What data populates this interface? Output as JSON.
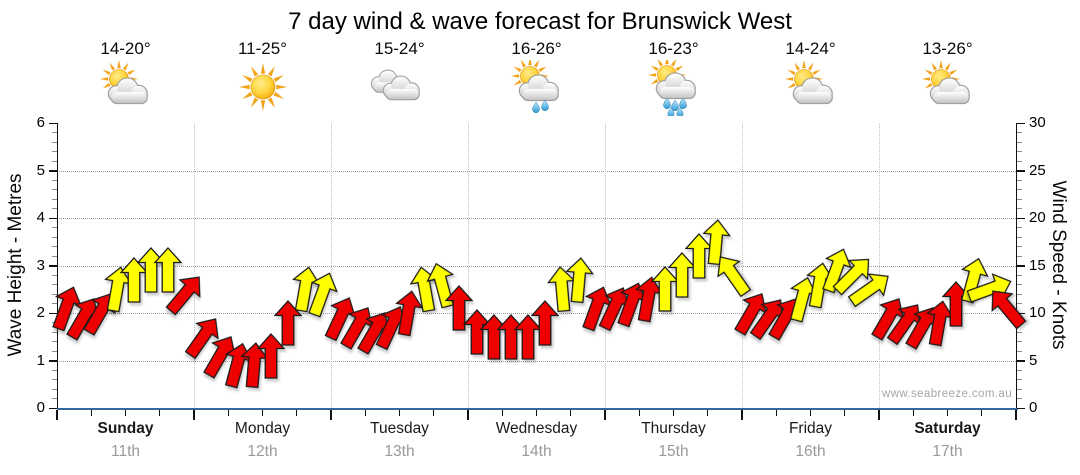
{
  "title": "7 day wind & wave forecast for Brunswick West",
  "watermark": "www.seabreeze.com.au",
  "axes": {
    "left": {
      "label": "Wave Height - Metres",
      "ticks": [
        0,
        1,
        2,
        3,
        4,
        5,
        6
      ],
      "range": [
        0,
        6
      ]
    },
    "right": {
      "label": "Wind Speed - Knots",
      "ticks": [
        0,
        5,
        10,
        15,
        20,
        25,
        30
      ],
      "range": [
        0,
        30
      ]
    }
  },
  "days": [
    {
      "name": "Sunday",
      "date": "11th",
      "temps": "14-20°",
      "icon": "sun-cloud",
      "weekend": true
    },
    {
      "name": "Monday",
      "date": "12th",
      "temps": "11-25°",
      "icon": "sun",
      "weekend": false
    },
    {
      "name": "Tuesday",
      "date": "13th",
      "temps": "15-24°",
      "icon": "clouds",
      "weekend": false
    },
    {
      "name": "Wednesday",
      "date": "14th",
      "temps": "16-26°",
      "icon": "sun-cloud-light-rain",
      "weekend": false
    },
    {
      "name": "Thursday",
      "date": "15th",
      "temps": "16-23°",
      "icon": "sun-cloud-rain",
      "weekend": false
    },
    {
      "name": "Friday",
      "date": "16th",
      "temps": "14-24°",
      "icon": "sun-cloud",
      "weekend": false
    },
    {
      "name": "Saturday",
      "date": "17th",
      "temps": "13-26°",
      "icon": "sun-cloud",
      "weekend": true
    }
  ],
  "colors": {
    "arrow_red": "#ee0000",
    "arrow_yellow": "#ffff00",
    "arrow_outline": "#1a1a1a",
    "axis_bottom_blue": "#34689a",
    "grid": "#9a9a9a",
    "date_text": "#999999",
    "watermark_text": "#a6a6a6"
  },
  "chart_data": {
    "type": "scatter",
    "title": "7 day wind & wave forecast for Brunswick West",
    "x": {
      "days": [
        "Sunday 11th",
        "Monday 12th",
        "Tuesday 13th",
        "Wednesday 14th",
        "Thursday 15th",
        "Friday 16th",
        "Saturday 17th"
      ],
      "points_per_day": 8
    },
    "y_left": {
      "label": "Wave Height - Metres",
      "range": [
        0,
        6
      ]
    },
    "y_right": {
      "label": "Wind Speed - Knots",
      "range": [
        0,
        30
      ]
    },
    "grid": true,
    "series_note": "wind arrows plotted on right axis (knots); color red/yellow; dir = rotation in degrees clockwise from straight up",
    "arrows": [
      {
        "knots": 10.5,
        "color": "red",
        "dir": 20
      },
      {
        "knots": 9.5,
        "color": "red",
        "dir": 30
      },
      {
        "knots": 10,
        "color": "red",
        "dir": 30
      },
      {
        "knots": 12.5,
        "color": "yellow",
        "dir": 10
      },
      {
        "knots": 13.5,
        "color": "yellow",
        "dir": 0
      },
      {
        "knots": 14.5,
        "color": "yellow",
        "dir": 0
      },
      {
        "knots": 14.5,
        "color": "yellow",
        "dir": 0
      },
      {
        "knots": 12,
        "color": "red",
        "dir": 40
      },
      {
        "knots": 7.5,
        "color": "red",
        "dir": 35
      },
      {
        "knots": 5.5,
        "color": "red",
        "dir": 30
      },
      {
        "knots": 4.5,
        "color": "red",
        "dir": 15
      },
      {
        "knots": 4.5,
        "color": "red",
        "dir": 5
      },
      {
        "knots": 5.5,
        "color": "red",
        "dir": 0
      },
      {
        "knots": 9,
        "color": "red",
        "dir": 0
      },
      {
        "knots": 12.5,
        "color": "yellow",
        "dir": 10
      },
      {
        "knots": 12,
        "color": "yellow",
        "dir": 20
      },
      {
        "knots": 9.5,
        "color": "red",
        "dir": 25
      },
      {
        "knots": 8.5,
        "color": "red",
        "dir": 30
      },
      {
        "knots": 8,
        "color": "red",
        "dir": 30
      },
      {
        "knots": 8.5,
        "color": "red",
        "dir": 25
      },
      {
        "knots": 10,
        "color": "red",
        "dir": 10
      },
      {
        "knots": 12.5,
        "color": "yellow",
        "dir": -10
      },
      {
        "knots": 13,
        "color": "yellow",
        "dir": -15
      },
      {
        "knots": 10.5,
        "color": "red",
        "dir": 0
      },
      {
        "knots": 8,
        "color": "red",
        "dir": 0
      },
      {
        "knots": 7.5,
        "color": "red",
        "dir": 0
      },
      {
        "knots": 7.5,
        "color": "red",
        "dir": 0
      },
      {
        "knots": 7.5,
        "color": "red",
        "dir": 0
      },
      {
        "knots": 9,
        "color": "red",
        "dir": 0
      },
      {
        "knots": 12.5,
        "color": "yellow",
        "dir": -5
      },
      {
        "knots": 13.5,
        "color": "yellow",
        "dir": 5
      },
      {
        "knots": 10.5,
        "color": "red",
        "dir": 20
      },
      {
        "knots": 10.5,
        "color": "red",
        "dir": 25
      },
      {
        "knots": 11,
        "color": "red",
        "dir": 20
      },
      {
        "knots": 11.5,
        "color": "red",
        "dir": 10
      },
      {
        "knots": 12.5,
        "color": "yellow",
        "dir": 0
      },
      {
        "knots": 14,
        "color": "yellow",
        "dir": 0
      },
      {
        "knots": 16,
        "color": "yellow",
        "dir": 0
      },
      {
        "knots": 17.5,
        "color": "yellow",
        "dir": 5
      },
      {
        "knots": 14,
        "color": "yellow",
        "dir": -35
      },
      {
        "knots": 10,
        "color": "red",
        "dir": 30
      },
      {
        "knots": 9.5,
        "color": "red",
        "dir": 35
      },
      {
        "knots": 9.5,
        "color": "red",
        "dir": 30
      },
      {
        "knots": 11.5,
        "color": "yellow",
        "dir": 15
      },
      {
        "knots": 13,
        "color": "yellow",
        "dir": 10
      },
      {
        "knots": 14.5,
        "color": "yellow",
        "dir": 20
      },
      {
        "knots": 14,
        "color": "yellow",
        "dir": 45
      },
      {
        "knots": 12.5,
        "color": "yellow",
        "dir": 55
      },
      {
        "knots": 9.5,
        "color": "red",
        "dir": 30
      },
      {
        "knots": 9,
        "color": "red",
        "dir": 35
      },
      {
        "knots": 8.5,
        "color": "red",
        "dir": 30
      },
      {
        "knots": 9,
        "color": "red",
        "dir": 10
      },
      {
        "knots": 11,
        "color": "red",
        "dir": 0
      },
      {
        "knots": 13.5,
        "color": "yellow",
        "dir": 15
      },
      {
        "knots": 12.5,
        "color": "yellow",
        "dir": 70
      },
      {
        "knots": 10.5,
        "color": "red",
        "dir": -40
      }
    ]
  }
}
